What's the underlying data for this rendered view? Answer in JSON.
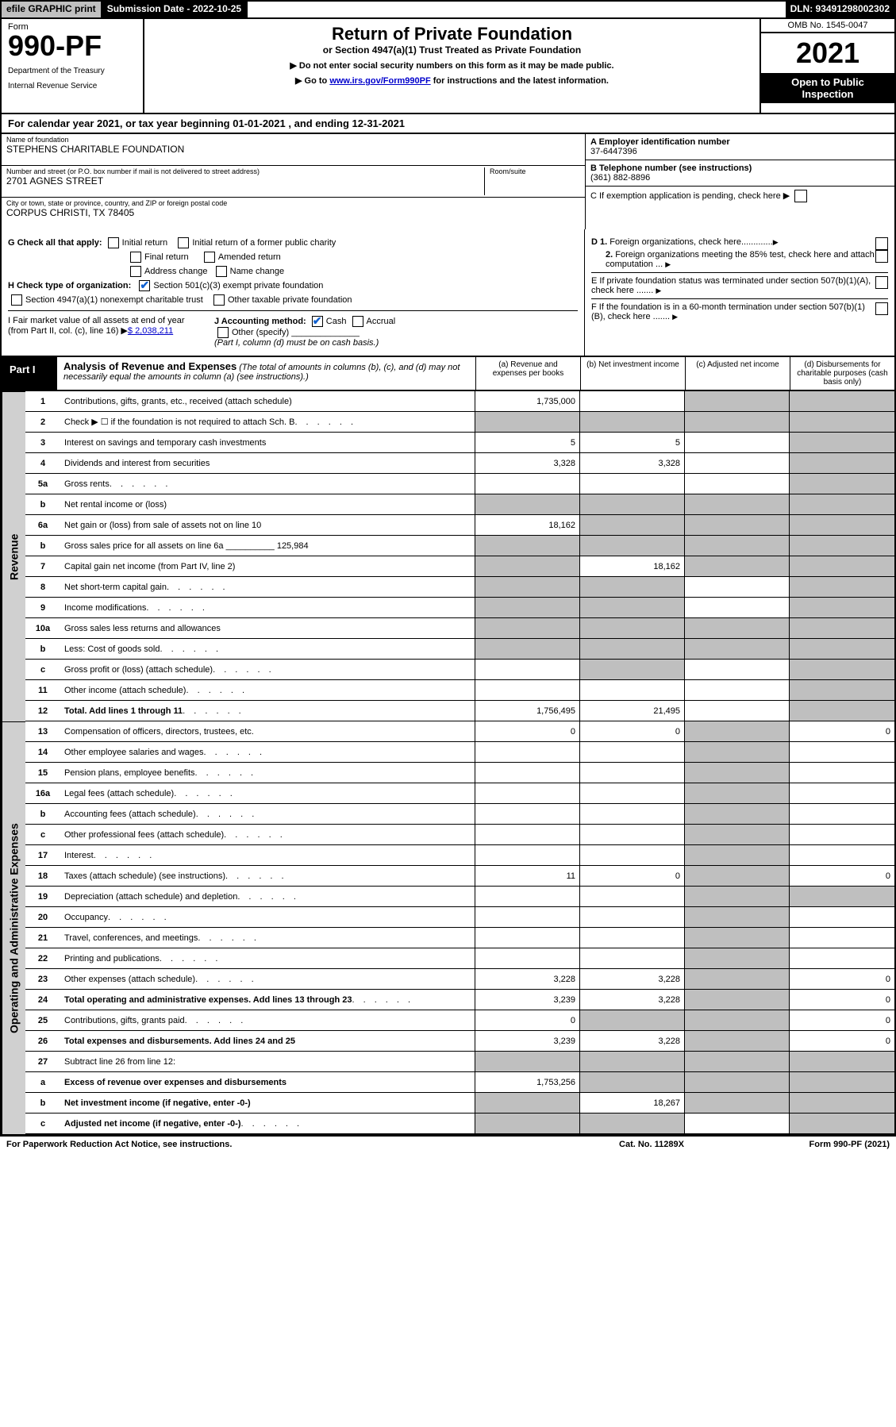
{
  "colors": {
    "black": "#000000",
    "white": "#ffffff",
    "grey_header": "#c0c0c0",
    "grey_shade": "#bfbfbf",
    "grey_sidelabel": "#d0d0d0",
    "link": "#0000cc",
    "check_blue": "#1060d0"
  },
  "topbar": {
    "efile": "efile GRAPHIC print",
    "submission": "Submission Date - 2022-10-25",
    "dln": "DLN: 93491298002302"
  },
  "header": {
    "form_word": "Form",
    "form_no": "990-PF",
    "dept": "Department of the Treasury",
    "irs": "Internal Revenue Service",
    "title": "Return of Private Foundation",
    "subtitle": "or Section 4947(a)(1) Trust Treated as Private Foundation",
    "note1": "▶ Do not enter social security numbers on this form as it may be made public.",
    "note2_pre": "▶ Go to ",
    "note2_link": "www.irs.gov/Form990PF",
    "note2_post": " for instructions and the latest information.",
    "omb": "OMB No. 1545-0047",
    "year": "2021",
    "open": "Open to Public Inspection"
  },
  "calyear": {
    "pre": "For calendar year 2021, or tax year beginning ",
    "begin": "01-01-2021",
    "mid": " , and ending ",
    "end": "12-31-2021"
  },
  "info": {
    "name_lbl": "Name of foundation",
    "name": "STEPHENS CHARITABLE FOUNDATION",
    "addr_lbl": "Number and street (or P.O. box number if mail is not delivered to street address)",
    "addr": "2701 AGNES STREET",
    "room_lbl": "Room/suite",
    "room": "",
    "city_lbl": "City or town, state or province, country, and ZIP or foreign postal code",
    "city": "CORPUS CHRISTI, TX  78405",
    "a_lbl": "A Employer identification number",
    "a_val": "37-6447396",
    "b_lbl": "B Telephone number (see instructions)",
    "b_val": "(361) 882-8896",
    "c_lbl": "C If exemption application is pending, check here",
    "d1_lbl": "D 1. Foreign organizations, check here",
    "d2_lbl": "2. Foreign organizations meeting the 85% test, check here and attach computation ...",
    "e_lbl": "E  If private foundation status was terminated under section 507(b)(1)(A), check here .......",
    "f_lbl": "F  If the foundation is in a 60-month termination under section 507(b)(1)(B), check here ......."
  },
  "g": {
    "lead": "G Check all that apply:",
    "initial": "Initial return",
    "ifpc": "Initial return of a former public charity",
    "final": "Final return",
    "amended": "Amended return",
    "addrchg": "Address change",
    "namechg": "Name change"
  },
  "h": {
    "lead": "H Check type of organization:",
    "c3": "Section 501(c)(3) exempt private foundation",
    "trust": "Section 4947(a)(1) nonexempt charitable trust",
    "other": "Other taxable private foundation"
  },
  "i": {
    "lead": "I Fair market value of all assets at end of year (from Part II, col. (c), line 16)",
    "val": "$  2,038,211"
  },
  "j": {
    "lead": "J Accounting method:",
    "cash": "Cash",
    "accrual": "Accrual",
    "other": "Other (specify)",
    "note": "(Part I, column (d) must be on cash basis.)"
  },
  "part1": {
    "label": "Part I",
    "title": "Analysis of Revenue and Expenses",
    "note": "(The total of amounts in columns (b), (c), and (d) may not necessarily equal the amounts in column (a) (see instructions).)",
    "col_a": "(a)    Revenue and expenses per books",
    "col_b": "(b)    Net investment income",
    "col_c": "(c)    Adjusted net income",
    "col_d": "(d)    Disbursements for charitable purposes (cash basis only)"
  },
  "side": {
    "revenue": "Revenue",
    "expenses": "Operating and Administrative Expenses"
  },
  "rows": [
    {
      "n": "1",
      "label": "Contributions, gifts, grants, etc., received (attach schedule)",
      "a": "1,735,000",
      "b": "",
      "c": "shade",
      "d": "shade"
    },
    {
      "n": "2",
      "label": "Check ▶ ☐ if the foundation is not required to attach Sch. B",
      "a": "shade",
      "b": "shade",
      "c": "shade",
      "d": "shade",
      "dotted": true
    },
    {
      "n": "3",
      "label": "Interest on savings and temporary cash investments",
      "a": "5",
      "b": "5",
      "c": "",
      "d": "shade"
    },
    {
      "n": "4",
      "label": "Dividends and interest from securities",
      "a": "3,328",
      "b": "3,328",
      "c": "",
      "d": "shade"
    },
    {
      "n": "5a",
      "label": "Gross rents",
      "a": "",
      "b": "",
      "c": "",
      "d": "shade",
      "dotted": true
    },
    {
      "n": "b",
      "label": "Net rental income or (loss)",
      "a": "shade",
      "b": "shade",
      "c": "shade",
      "d": "shade"
    },
    {
      "n": "6a",
      "label": "Net gain or (loss) from sale of assets not on line 10",
      "a": "18,162",
      "b": "shade",
      "c": "shade",
      "d": "shade"
    },
    {
      "n": "b",
      "label": "Gross sales price for all assets on line 6a __________ 125,984",
      "a": "shade",
      "b": "shade",
      "c": "shade",
      "d": "shade"
    },
    {
      "n": "7",
      "label": "Capital gain net income (from Part IV, line 2)",
      "a": "shade",
      "b": "18,162",
      "c": "shade",
      "d": "shade"
    },
    {
      "n": "8",
      "label": "Net short-term capital gain",
      "a": "shade",
      "b": "shade",
      "c": "",
      "d": "shade",
      "dotted": true
    },
    {
      "n": "9",
      "label": "Income modifications",
      "a": "shade",
      "b": "shade",
      "c": "",
      "d": "shade",
      "dotted": true
    },
    {
      "n": "10a",
      "label": "Gross sales less returns and allowances",
      "a": "shade",
      "b": "shade",
      "c": "shade",
      "d": "shade"
    },
    {
      "n": "b",
      "label": "Less: Cost of goods sold",
      "a": "shade",
      "b": "shade",
      "c": "shade",
      "d": "shade",
      "dotted": true
    },
    {
      "n": "c",
      "label": "Gross profit or (loss) (attach schedule)",
      "a": "",
      "b": "shade",
      "c": "",
      "d": "shade",
      "dotted": true
    },
    {
      "n": "11",
      "label": "Other income (attach schedule)",
      "a": "",
      "b": "",
      "c": "",
      "d": "shade",
      "dotted": true
    },
    {
      "n": "12",
      "label": "Total. Add lines 1 through 11",
      "a": "1,756,495",
      "b": "21,495",
      "c": "",
      "d": "shade",
      "bold": true,
      "dotted": true
    },
    {
      "n": "13",
      "label": "Compensation of officers, directors, trustees, etc.",
      "a": "0",
      "b": "0",
      "c": "shade",
      "d": "0"
    },
    {
      "n": "14",
      "label": "Other employee salaries and wages",
      "a": "",
      "b": "",
      "c": "shade",
      "d": "",
      "dotted": true
    },
    {
      "n": "15",
      "label": "Pension plans, employee benefits",
      "a": "",
      "b": "",
      "c": "shade",
      "d": "",
      "dotted": true
    },
    {
      "n": "16a",
      "label": "Legal fees (attach schedule)",
      "a": "",
      "b": "",
      "c": "shade",
      "d": "",
      "dotted": true
    },
    {
      "n": "b",
      "label": "Accounting fees (attach schedule)",
      "a": "",
      "b": "",
      "c": "shade",
      "d": "",
      "dotted": true
    },
    {
      "n": "c",
      "label": "Other professional fees (attach schedule)",
      "a": "",
      "b": "",
      "c": "shade",
      "d": "",
      "dotted": true
    },
    {
      "n": "17",
      "label": "Interest",
      "a": "",
      "b": "",
      "c": "shade",
      "d": "",
      "dotted": true
    },
    {
      "n": "18",
      "label": "Taxes (attach schedule) (see instructions)",
      "a": "11",
      "b": "0",
      "c": "shade",
      "d": "0",
      "dotted": true
    },
    {
      "n": "19",
      "label": "Depreciation (attach schedule) and depletion",
      "a": "",
      "b": "",
      "c": "shade",
      "d": "shade",
      "dotted": true
    },
    {
      "n": "20",
      "label": "Occupancy",
      "a": "",
      "b": "",
      "c": "shade",
      "d": "",
      "dotted": true
    },
    {
      "n": "21",
      "label": "Travel, conferences, and meetings",
      "a": "",
      "b": "",
      "c": "shade",
      "d": "",
      "dotted": true
    },
    {
      "n": "22",
      "label": "Printing and publications",
      "a": "",
      "b": "",
      "c": "shade",
      "d": "",
      "dotted": true
    },
    {
      "n": "23",
      "label": "Other expenses (attach schedule)",
      "a": "3,228",
      "b": "3,228",
      "c": "shade",
      "d": "0",
      "dotted": true
    },
    {
      "n": "24",
      "label": "Total operating and administrative expenses. Add lines 13 through 23",
      "a": "3,239",
      "b": "3,228",
      "c": "shade",
      "d": "0",
      "bold": true,
      "dotted": true
    },
    {
      "n": "25",
      "label": "Contributions, gifts, grants paid",
      "a": "0",
      "b": "shade",
      "c": "shade",
      "d": "0",
      "dotted": true
    },
    {
      "n": "26",
      "label": "Total expenses and disbursements. Add lines 24 and 25",
      "a": "3,239",
      "b": "3,228",
      "c": "shade",
      "d": "0",
      "bold": true
    },
    {
      "n": "27",
      "label": "Subtract line 26 from line 12:",
      "a": "shade",
      "b": "shade",
      "c": "shade",
      "d": "shade"
    },
    {
      "n": "a",
      "label": "Excess of revenue over expenses and disbursements",
      "a": "1,753,256",
      "b": "shade",
      "c": "shade",
      "d": "shade",
      "bold": true
    },
    {
      "n": "b",
      "label": "Net investment income (if negative, enter -0-)",
      "a": "shade",
      "b": "18,267",
      "c": "shade",
      "d": "shade",
      "bold": true
    },
    {
      "n": "c",
      "label": "Adjusted net income (if negative, enter -0-)",
      "a": "shade",
      "b": "shade",
      "c": "",
      "d": "shade",
      "bold": true,
      "dotted": true
    }
  ],
  "footer": {
    "left": "For Paperwork Reduction Act Notice, see instructions.",
    "mid": "Cat. No. 11289X",
    "right": "Form 990-PF (2021)"
  }
}
